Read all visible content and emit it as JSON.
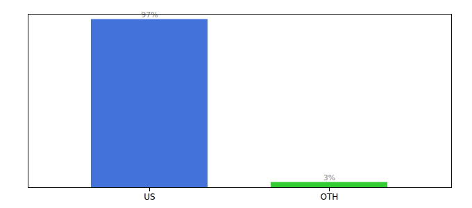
{
  "chart_data": {
    "type": "bar",
    "categories": [
      "US",
      "OTH"
    ],
    "values": [
      97,
      3
    ],
    "value_labels": [
      "97%",
      "3%"
    ],
    "colors": [
      "#4472db",
      "#33cc33"
    ],
    "ylim": [
      0,
      100
    ],
    "data_labels": true,
    "tick_labels": "x",
    "grid": false
  }
}
